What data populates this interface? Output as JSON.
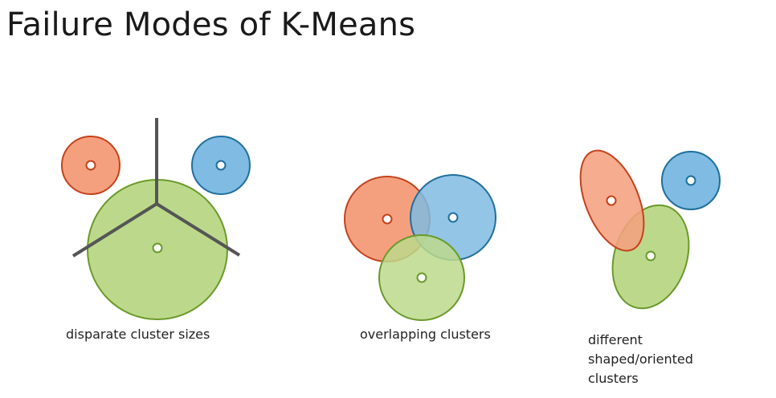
{
  "title": "Failure Modes of K-Means",
  "colors": {
    "orange_fill": "#f4a07f",
    "orange_stroke": "#c4421a",
    "blue_fill": "#7fbbe2",
    "blue_stroke": "#1f6f9e",
    "green_fill": "#bcd98b",
    "green_stroke": "#6a9a2a",
    "boundary": "#555555",
    "center_fill": "#ffffff"
  },
  "panels": [
    {
      "id": "disparate-sizes",
      "caption": [
        "disparate cluster sizes"
      ],
      "clusters": [
        "orange",
        "blue",
        "green"
      ]
    },
    {
      "id": "overlapping",
      "caption": [
        "overlapping clusters"
      ],
      "clusters": [
        "orange",
        "blue",
        "green"
      ]
    },
    {
      "id": "shaped-oriented",
      "caption": [
        "different",
        "shaped/oriented",
        "clusters"
      ],
      "clusters": [
        "orange",
        "blue",
        "green"
      ]
    }
  ]
}
